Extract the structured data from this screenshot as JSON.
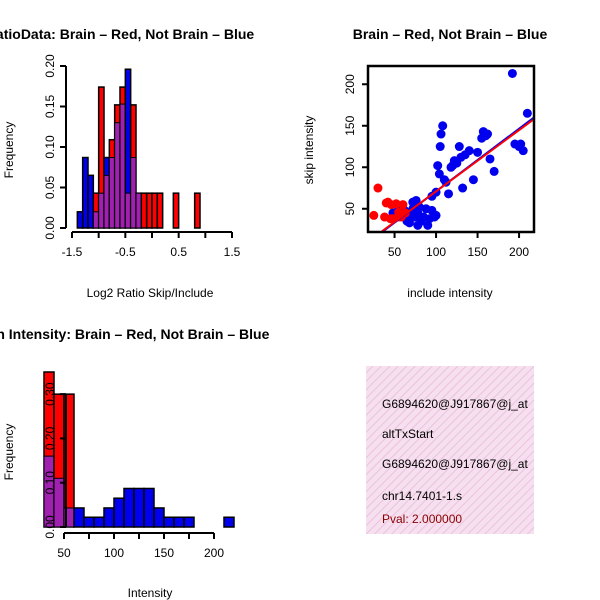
{
  "colors": {
    "red": "#ff0000",
    "blue": "#0000ee",
    "purple": "#a020b0",
    "fit_line": "#9900cc",
    "info_bg": "#f4d7ea"
  },
  "chart_data": [
    {
      "id": "ratio",
      "type": "bar",
      "subtype": "overlaid-histogram",
      "title": "RatioData: Brain – Red, Not Brain – Blue",
      "xlabel": "Log2 Ratio Skip/Include",
      "ylabel": "Frequency",
      "xlim": [
        -1.5,
        1.5
      ],
      "ylim": [
        0,
        0.2
      ],
      "xticks": [
        -1.5,
        -0.5,
        0.5,
        1.5
      ],
      "yticks": [
        0.0,
        0.05,
        0.1,
        0.15,
        0.2
      ],
      "ytick_labels": [
        "0.00",
        "0.05",
        "0.10",
        "0.15",
        "0.20"
      ],
      "bin_start": -1.5,
      "bin_width": 0.1,
      "series": [
        {
          "name": "Not Brain",
          "color": "blue",
          "values": [
            0,
            0.02,
            0.087,
            0.065,
            0.02,
            0.043,
            0.087,
            0.087,
            0.13,
            0.153,
            0.196,
            0.087,
            0.043,
            0,
            0,
            0,
            0,
            0,
            0,
            0,
            0,
            0,
            0,
            0,
            0,
            0,
            0,
            0,
            0,
            0
          ]
        },
        {
          "name": "Brain",
          "color": "red",
          "values": [
            0,
            0,
            0,
            0,
            0.043,
            0.174,
            0.065,
            0.109,
            0.152,
            0.174,
            0.043,
            0.152,
            0.043,
            0.043,
            0.043,
            0.043,
            0.043,
            0,
            0,
            0.043,
            0,
            0,
            0,
            0.043,
            0,
            0,
            0,
            0,
            0,
            0
          ]
        }
      ]
    },
    {
      "id": "scatter",
      "type": "scatter",
      "title": "Brain – Red, Not Brain – Blue",
      "xlabel": "include intensity",
      "ylabel": "skip intensity",
      "xlim": [
        18,
        218
      ],
      "ylim": [
        22,
        222
      ],
      "xticks": [
        50,
        100,
        150,
        200
      ],
      "yticks": [
        50,
        100,
        150,
        200
      ],
      "series": [
        {
          "name": "Not Brain",
          "color": "blue",
          "points": [
            [
              48,
              45
            ],
            [
              55,
              50
            ],
            [
              60,
              42
            ],
            [
              62,
              48
            ],
            [
              65,
              35
            ],
            [
              68,
              33
            ],
            [
              70,
              42
            ],
            [
              72,
              50
            ],
            [
              72,
              58
            ],
            [
              74,
              40
            ],
            [
              75,
              55
            ],
            [
              76,
              60
            ],
            [
              78,
              30
            ],
            [
              78,
              45
            ],
            [
              80,
              52
            ],
            [
              82,
              35
            ],
            [
              85,
              40
            ],
            [
              88,
              50
            ],
            [
              90,
              30
            ],
            [
              92,
              38
            ],
            [
              95,
              48
            ],
            [
              95,
              65
            ],
            [
              98,
              40
            ],
            [
              100,
              42
            ],
            [
              100,
              70
            ],
            [
              102,
              102
            ],
            [
              104,
              92
            ],
            [
              105,
              125
            ],
            [
              106,
              140
            ],
            [
              108,
              150
            ],
            [
              110,
              85
            ],
            [
              112,
              82
            ],
            [
              115,
              68
            ],
            [
              118,
              100
            ],
            [
              120,
              102
            ],
            [
              122,
              108
            ],
            [
              125,
              105
            ],
            [
              128,
              125
            ],
            [
              130,
              112
            ],
            [
              132,
              75
            ],
            [
              135,
              115
            ],
            [
              140,
              120
            ],
            [
              145,
              85
            ],
            [
              150,
              118
            ],
            [
              155,
              135
            ],
            [
              157,
              143
            ],
            [
              160,
              138
            ],
            [
              162,
              140
            ],
            [
              165,
              110
            ],
            [
              170,
              95
            ],
            [
              192,
              213
            ],
            [
              195,
              128
            ],
            [
              200,
              125
            ],
            [
              202,
              128
            ],
            [
              205,
              120
            ],
            [
              210,
              165
            ]
          ]
        },
        {
          "name": "Brain",
          "color": "red",
          "points": [
            [
              25,
              42
            ],
            [
              30,
              75
            ],
            [
              38,
              40
            ],
            [
              40,
              57
            ],
            [
              42,
              58
            ],
            [
              45,
              38
            ],
            [
              46,
              55
            ],
            [
              48,
              38
            ],
            [
              52,
              56
            ],
            [
              54,
              40
            ],
            [
              55,
              46
            ],
            [
              58,
              40
            ],
            [
              60,
              55
            ],
            [
              63,
              45
            ]
          ]
        }
      ],
      "fit_lines": [
        {
          "x": [
            35,
            218
          ],
          "y": [
            22,
            160
          ]
        },
        {
          "x": [
            35,
            218
          ],
          "y": [
            23,
            158
          ]
        }
      ]
    },
    {
      "id": "intensity",
      "type": "bar",
      "subtype": "overlaid-histogram",
      "title": "Exon Intensity: Brain – Red, Not Brain – Blue",
      "xlabel": "Intensity",
      "ylabel": "Frequency",
      "xlim": [
        20,
        220
      ],
      "ylim": [
        0,
        0.35
      ],
      "xticks": [
        50,
        100,
        150,
        200
      ],
      "yticks": [
        0.0,
        0.1,
        0.2,
        0.3
      ],
      "ytick_labels": [
        "0.00",
        "0.10",
        "0.20",
        "0.30"
      ],
      "bin_start": 30,
      "bin_width": 10,
      "series": [
        {
          "name": "Not Brain",
          "color": "blue",
          "values": [
            0.16,
            0.11,
            0.043,
            0.043,
            0.022,
            0.022,
            0.043,
            0.065,
            0.087,
            0.087,
            0.087,
            0.043,
            0.022,
            0.022,
            0.022,
            0,
            0,
            0,
            0.022
          ]
        },
        {
          "name": "Brain",
          "color": "red",
          "values": [
            0.35,
            0.3,
            0.3,
            0,
            0,
            0,
            0,
            0,
            0,
            0,
            0,
            0,
            0,
            0,
            0,
            0,
            0,
            0,
            0
          ]
        }
      ]
    }
  ],
  "info_panel": {
    "lines": [
      {
        "text": "G6894620@J917867@j_at",
        "color": "#000000"
      },
      {
        "text": "altTxStart",
        "color": "#000000"
      },
      {
        "text": "G6894620@J917867@j_at",
        "color": "#000000"
      },
      {
        "text": "chr14.7401-1.s",
        "color": "#000000"
      },
      {
        "text": "Pval: 2.000000",
        "color": "#8b0000"
      }
    ]
  }
}
